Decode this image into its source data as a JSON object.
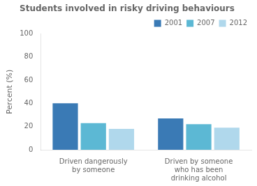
{
  "chart_data": {
    "type": "bar",
    "title": "Students involved in risky driving behaviours",
    "ylabel": "Percent (%)",
    "categories": [
      "Driven dangerously\nby someone",
      "Driven by someone\nwho has been\ndrinking alcohol"
    ],
    "series": [
      {
        "name": "2001",
        "color": "#3a7ab5",
        "values": [
          40,
          27
        ]
      },
      {
        "name": "2007",
        "color": "#5cb8d4",
        "values": [
          23,
          22
        ]
      },
      {
        "name": "2012",
        "color": "#b0d8ec",
        "values": [
          18,
          19
        ]
      }
    ],
    "ylim": [
      0,
      100
    ],
    "yticks": [
      0,
      20,
      40,
      60,
      80,
      100
    ],
    "grid": false,
    "legend": "upper right"
  }
}
